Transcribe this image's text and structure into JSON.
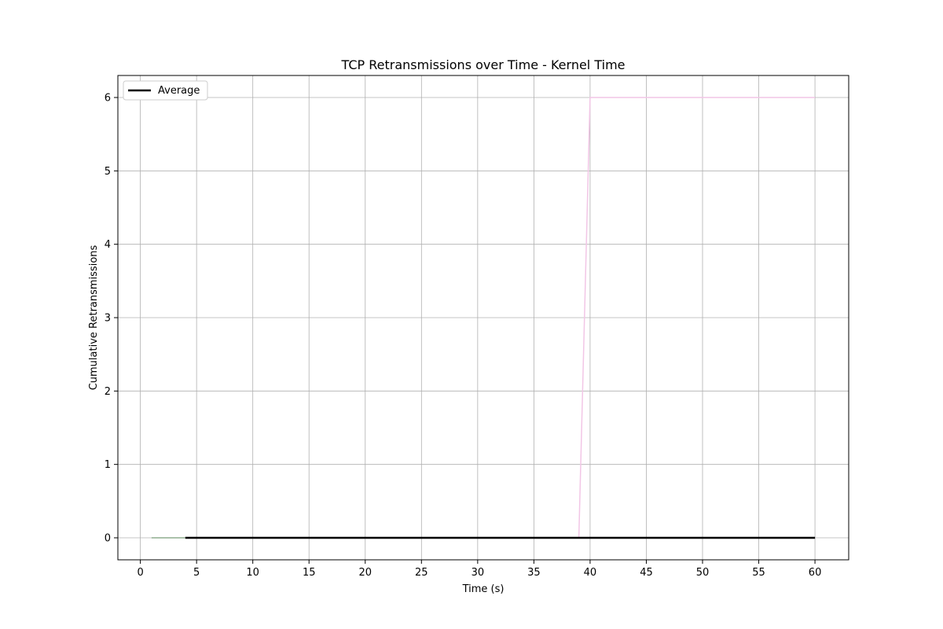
{
  "chart_data": {
    "type": "line",
    "title": "TCP Retransmissions over Time - Kernel Time",
    "xlabel": "Time (s)",
    "ylabel": "Cumulative Retransmissions",
    "xlim": [
      -2,
      63
    ],
    "ylim": [
      -0.3,
      6.3
    ],
    "xticks": [
      0,
      5,
      10,
      15,
      20,
      25,
      30,
      35,
      40,
      45,
      50,
      55,
      60
    ],
    "yticks": [
      0,
      1,
      2,
      3,
      4,
      5,
      6
    ],
    "grid": true,
    "legend_placement": "top-left",
    "legend": [
      "Average"
    ],
    "series": [
      {
        "color": "#8fae8f",
        "width": 1.5,
        "points": [
          [
            1,
            0
          ],
          [
            4,
            0
          ]
        ]
      },
      {
        "color": "#f2c6e6",
        "width": 1.5,
        "points": [
          [
            39,
            0
          ],
          [
            40,
            6
          ],
          [
            60,
            6
          ]
        ]
      },
      {
        "name": "Average",
        "color": "#000000",
        "width": 2.5,
        "points": [
          [
            4,
            0
          ],
          [
            60,
            0
          ]
        ]
      }
    ]
  }
}
